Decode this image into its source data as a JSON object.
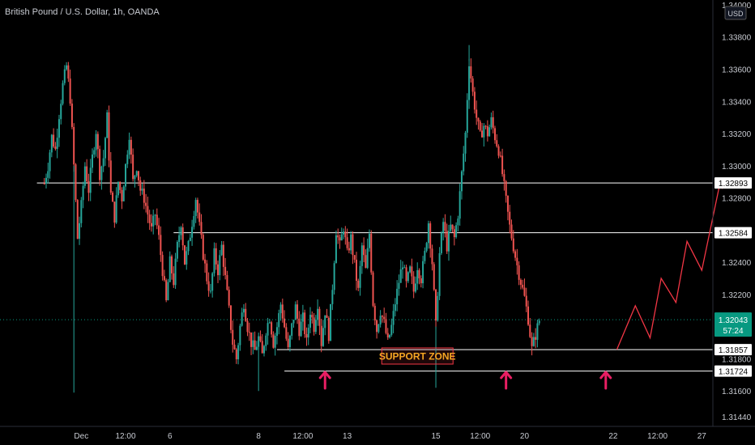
{
  "chart_data": {
    "type": "candlestick",
    "title": "British Pound / U.S. Dollar, 1h, OANDA",
    "currency": "USD",
    "colors": {
      "up": "#26a69a",
      "down": "#ef5350",
      "level_line": "#ffffff",
      "current_tag": "#089981",
      "support_zone_text": "#f5a623",
      "arrow": "#e91e63",
      "projection": "#f23645"
    },
    "y_axis": {
      "ticks": [
        "1.34000",
        "1.33800",
        "1.33600",
        "1.33400",
        "1.33200",
        "1.33000",
        "1.32800",
        "1.32600",
        "1.32400",
        "1.32200",
        "1.32000",
        "1.31800",
        "1.31600",
        "1.31440"
      ],
      "ylim": [
        1.3138,
        1.3403
      ]
    },
    "x_axis": {
      "ticks": [
        {
          "label": "Dec",
          "t": 22
        },
        {
          "label": "12:00",
          "t": 34
        },
        {
          "label": "6",
          "t": 46
        },
        {
          "label": "8",
          "t": 70
        },
        {
          "label": "12:00",
          "t": 82
        },
        {
          "label": "13",
          "t": 94
        },
        {
          "label": "15",
          "t": 118
        },
        {
          "label": "12:00",
          "t": 130
        },
        {
          "label": "20",
          "t": 142
        },
        {
          "label": "22",
          "t": 166
        },
        {
          "label": "12:00",
          "t": 178
        },
        {
          "label": "27",
          "t": 190
        }
      ]
    },
    "price_path": [
      [
        12,
        1.3289
      ],
      [
        13,
        1.33
      ],
      [
        14,
        1.3318
      ],
      [
        15,
        1.331
      ],
      [
        16,
        1.3332
      ],
      [
        17,
        1.335
      ],
      [
        18,
        1.3362
      ],
      [
        19,
        1.3342
      ],
      [
        20,
        1.33
      ],
      [
        21,
        1.3255
      ],
      [
        22,
        1.3275
      ],
      [
        23,
        1.33
      ],
      [
        24,
        1.3285
      ],
      [
        25,
        1.3305
      ],
      [
        26,
        1.3322
      ],
      [
        27,
        1.3295
      ],
      [
        28,
        1.3305
      ],
      [
        29,
        1.333
      ],
      [
        30,
        1.3282
      ],
      [
        31,
        1.3268
      ],
      [
        32,
        1.329
      ],
      [
        33,
        1.328
      ],
      [
        34,
        1.33
      ],
      [
        35,
        1.332
      ],
      [
        36,
        1.329
      ],
      [
        37,
        1.33
      ],
      [
        38,
        1.3285
      ],
      [
        39,
        1.328
      ],
      [
        40,
        1.327
      ],
      [
        41,
        1.326
      ],
      [
        42,
        1.327
      ],
      [
        43,
        1.3255
      ],
      [
        44,
        1.3235
      ],
      [
        45,
        1.3215
      ],
      [
        46,
        1.324
      ],
      [
        47,
        1.3228
      ],
      [
        48,
        1.325
      ],
      [
        49,
        1.3265
      ],
      [
        50,
        1.324
      ],
      [
        51,
        1.325
      ],
      [
        52,
        1.3265
      ],
      [
        53,
        1.328
      ],
      [
        54,
        1.3262
      ],
      [
        55,
        1.3245
      ],
      [
        56,
        1.323
      ],
      [
        57,
        1.322
      ],
      [
        58,
        1.3245
      ],
      [
        59,
        1.3235
      ],
      [
        60,
        1.325
      ],
      [
        61,
        1.323
      ],
      [
        62,
        1.321
      ],
      [
        63,
        1.319
      ],
      [
        64,
        1.318
      ],
      [
        65,
        1.32
      ],
      [
        66,
        1.3215
      ],
      [
        67,
        1.32
      ],
      [
        68,
        1.319
      ],
      [
        69,
        1.3185
      ],
      [
        70,
        1.3193
      ],
      [
        71,
        1.3182
      ],
      [
        72,
        1.3198
      ],
      [
        73,
        1.3206
      ],
      [
        74,
        1.319
      ],
      [
        75,
        1.32
      ],
      [
        76,
        1.3214
      ],
      [
        77,
        1.32
      ],
      [
        78,
        1.3185
      ],
      [
        79,
        1.32
      ],
      [
        80,
        1.3212
      ],
      [
        81,
        1.3198
      ],
      [
        82,
        1.3205
      ],
      [
        83,
        1.319
      ],
      [
        84,
        1.321
      ],
      [
        85,
        1.32
      ],
      [
        86,
        1.3215
      ],
      [
        87,
        1.319
      ],
      [
        88,
        1.321
      ],
      [
        89,
        1.3195
      ],
      [
        90,
        1.3225
      ],
      [
        91,
        1.326
      ],
      [
        92,
        1.325
      ],
      [
        93,
        1.3262
      ],
      [
        94,
        1.3245
      ],
      [
        95,
        1.3255
      ],
      [
        96,
        1.3238
      ],
      [
        97,
        1.3222
      ],
      [
        98,
        1.325
      ],
      [
        99,
        1.3235
      ],
      [
        100,
        1.3258
      ],
      [
        101,
        1.3215
      ],
      [
        102,
        1.3198
      ],
      [
        103,
        1.321
      ],
      [
        104,
        1.3202
      ],
      [
        105,
        1.319
      ],
      [
        106,
        1.32
      ],
      [
        107,
        1.3215
      ],
      [
        108,
        1.3228
      ],
      [
        109,
        1.324
      ],
      [
        110,
        1.3226
      ],
      [
        111,
        1.3235
      ],
      [
        112,
        1.3222
      ],
      [
        113,
        1.3238
      ],
      [
        114,
        1.323
      ],
      [
        115,
        1.3245
      ],
      [
        116,
        1.3265
      ],
      [
        117,
        1.324
      ],
      [
        118,
        1.32
      ],
      [
        119,
        1.3245
      ],
      [
        120,
        1.3265
      ],
      [
        121,
        1.325
      ],
      [
        122,
        1.3262
      ],
      [
        123,
        1.3255
      ],
      [
        124,
        1.327
      ],
      [
        125,
        1.3295
      ],
      [
        126,
        1.332
      ],
      [
        127,
        1.3365
      ],
      [
        128,
        1.3345
      ],
      [
        129,
        1.333
      ],
      [
        130,
        1.3318
      ],
      [
        131,
        1.3325
      ],
      [
        132,
        1.332
      ],
      [
        133,
        1.3328
      ],
      [
        134,
        1.3318
      ],
      [
        135,
        1.331
      ],
      [
        136,
        1.3295
      ],
      [
        137,
        1.3278
      ],
      [
        138,
        1.3262
      ],
      [
        139,
        1.325
      ],
      [
        140,
        1.3238
      ],
      [
        141,
        1.3228
      ],
      [
        142,
        1.3218
      ],
      [
        143,
        1.3205
      ],
      [
        144,
        1.3186
      ],
      [
        145,
        1.3195
      ],
      [
        146,
        1.3204
      ]
    ],
    "levels": [
      {
        "price": 1.32893,
        "label": "1.32893",
        "from_t": 10
      },
      {
        "price": 1.32584,
        "label": "1.32584",
        "from_t": 47
      },
      {
        "price": 1.31857,
        "label": "1.31857",
        "from_t": 75
      },
      {
        "price": 1.31724,
        "label": "1.31724",
        "from_t": 77
      }
    ],
    "current_price": {
      "label": "1.32043",
      "countdown": "57:24",
      "price": 1.32043
    },
    "annotation": {
      "label": "SUPPORT ZONE",
      "t": 113,
      "price": 1.3179
    },
    "arrows_t": [
      88,
      137,
      164
    ],
    "projection_path": [
      [
        167,
        1.31857
      ],
      [
        172,
        1.3213
      ],
      [
        176,
        1.3193
      ],
      [
        179,
        1.323
      ],
      [
        183,
        1.3215
      ],
      [
        186,
        1.3253
      ],
      [
        190,
        1.3235
      ],
      [
        195,
        1.329
      ]
    ]
  }
}
